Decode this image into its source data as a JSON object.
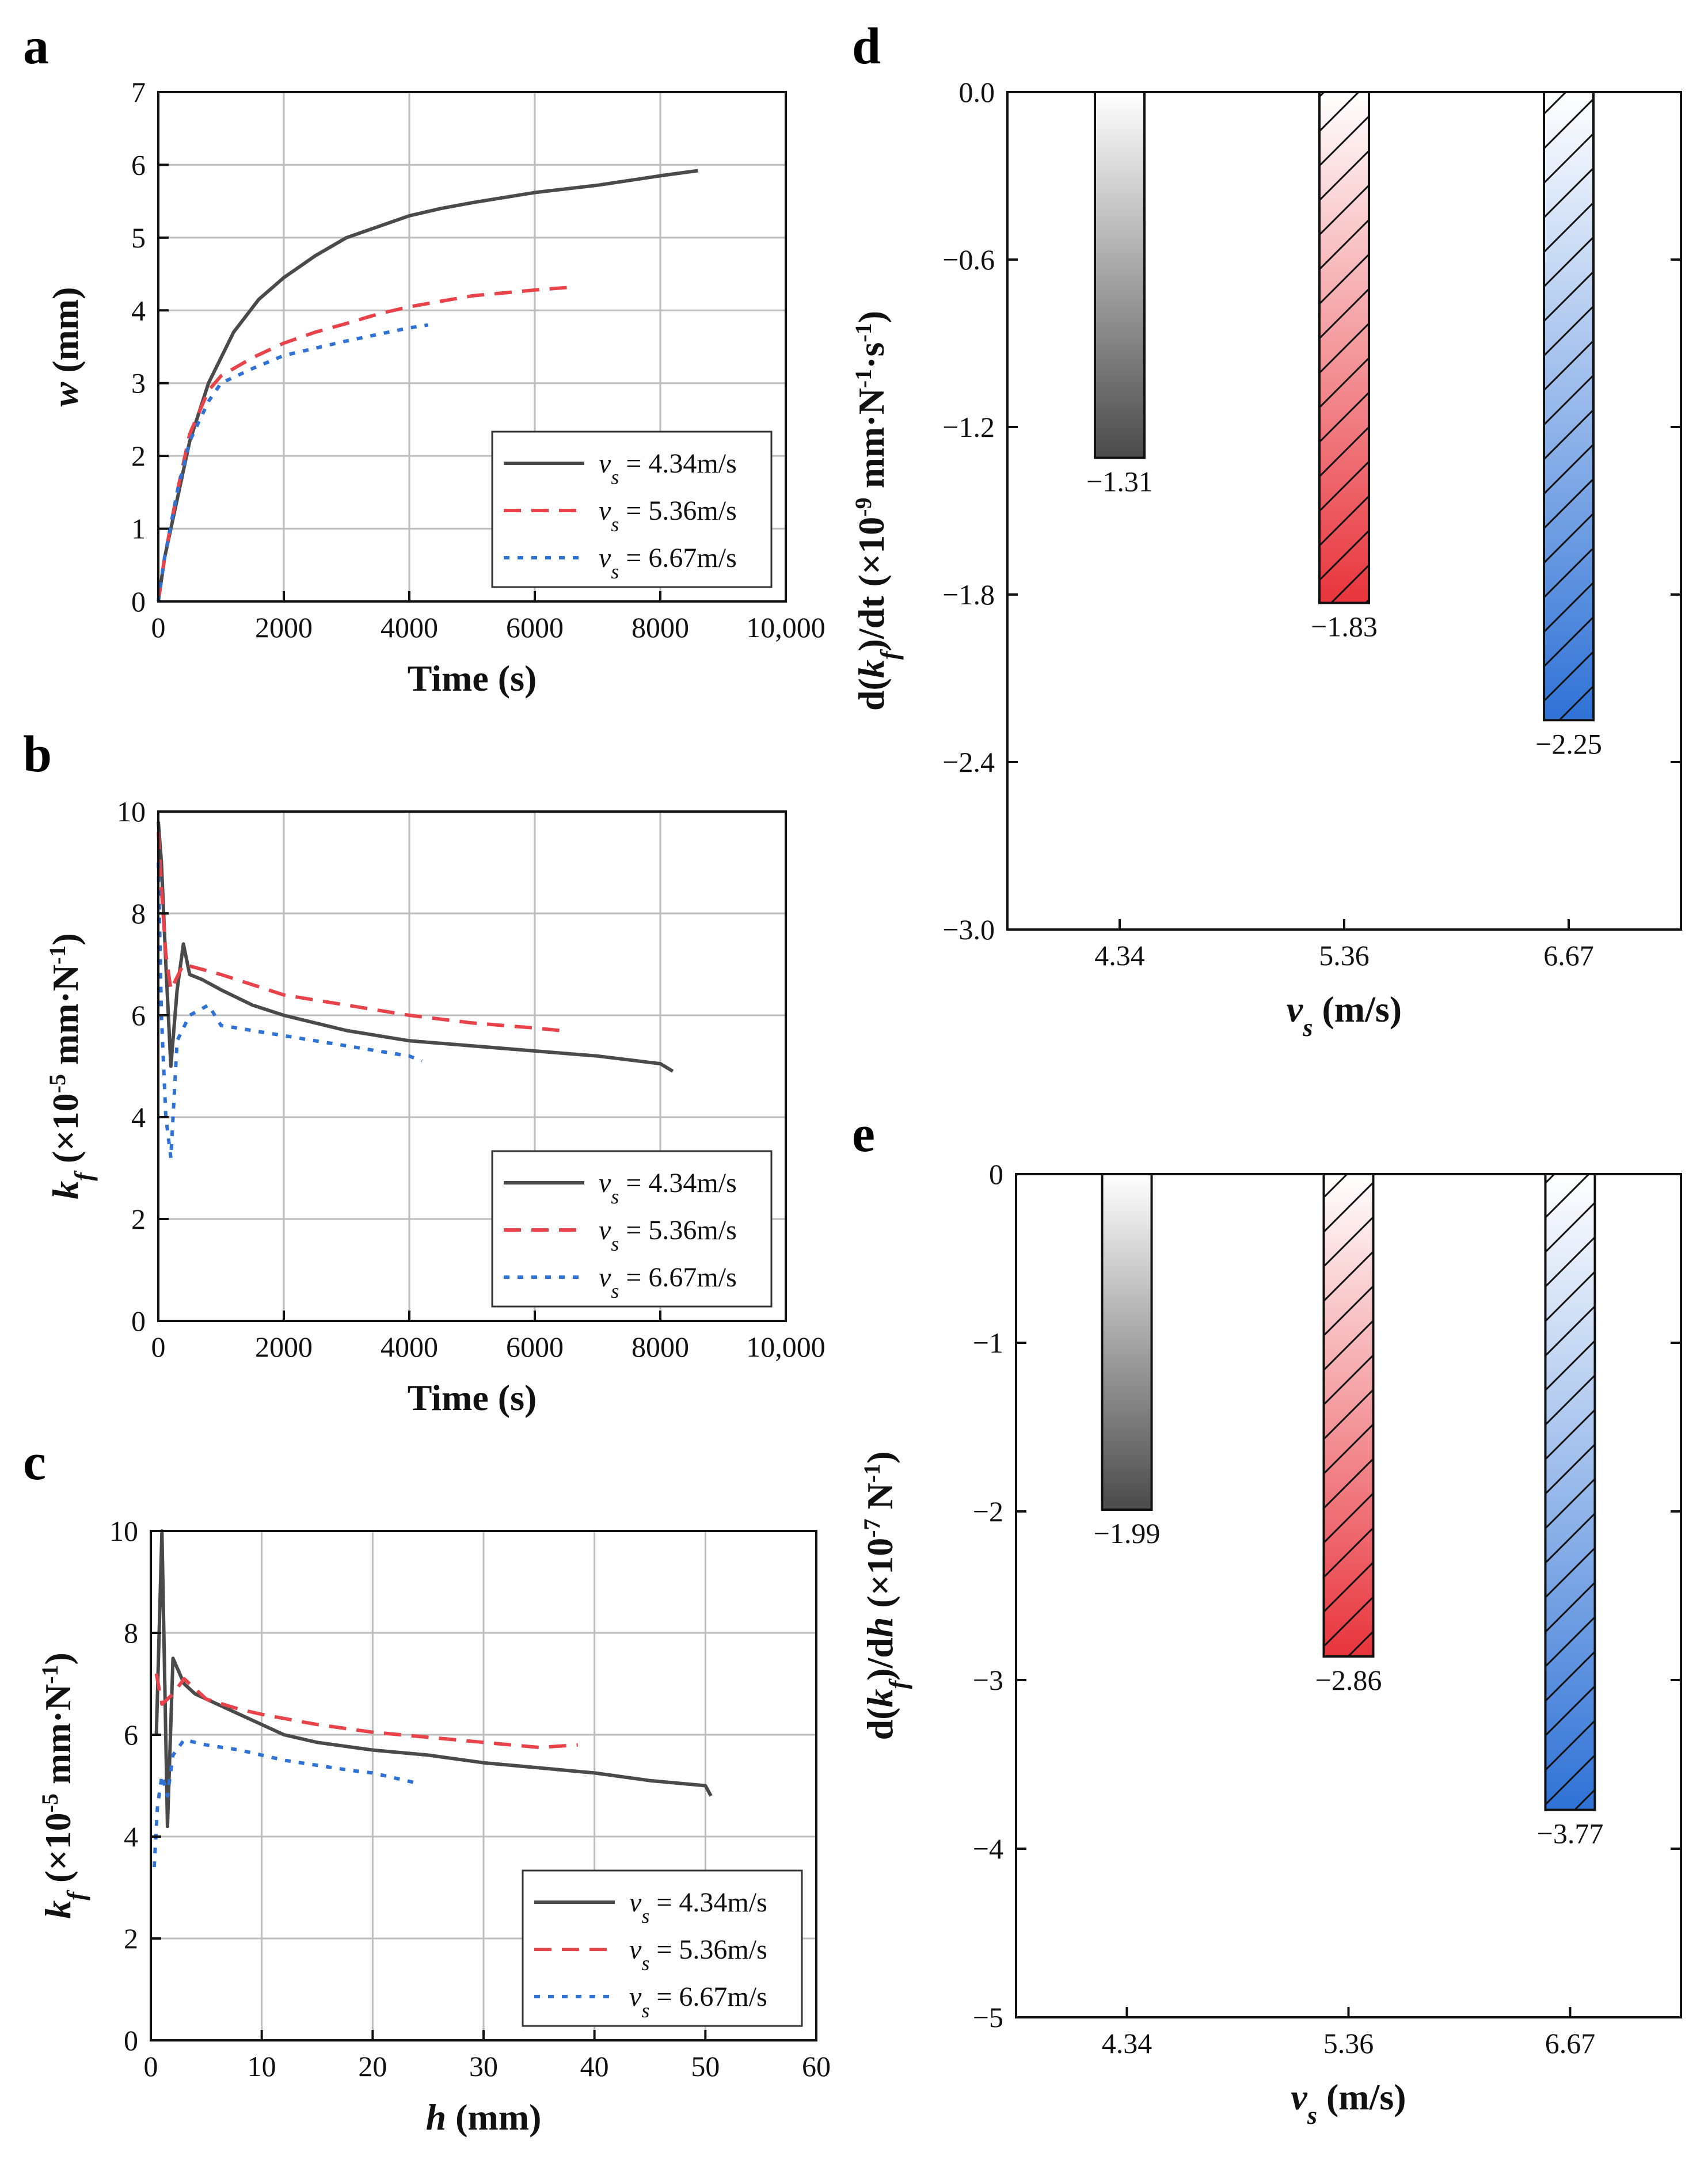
{
  "panel_letters": [
    "a",
    "b",
    "c",
    "d",
    "e"
  ],
  "colors": {
    "s1": "#4a4a4a",
    "s2": "#e8434a",
    "s3": "#2f72d6",
    "grid": "#bdbdbd",
    "axis": "#111111"
  },
  "legend": {
    "v_symbol": "v",
    "v_sub": "s",
    "entries": [
      "= 4.34m/s",
      "= 5.36m/s",
      "= 6.67m/s"
    ]
  },
  "chart_data": [
    {
      "id": "a",
      "type": "line",
      "xlabel": "Time (s)",
      "ylabel_main": "w",
      "ylabel_unit": " (mm)",
      "xlim": [
        0,
        10000
      ],
      "ylim": [
        0,
        7
      ],
      "xticks": [
        0,
        2000,
        4000,
        6000,
        8000,
        10000
      ],
      "xtick_labels": [
        "0",
        "2000",
        "4000",
        "6000",
        "8000",
        "10,000"
      ],
      "yticks": [
        0,
        1,
        2,
        3,
        4,
        5,
        6,
        7
      ],
      "ytick_labels": [
        "0",
        "1",
        "2",
        "3",
        "4",
        "5",
        "6",
        "7"
      ],
      "series": [
        {
          "name": "4.34m/s",
          "x": [
            0,
            100,
            300,
            500,
            800,
            1200,
            1600,
            2000,
            2500,
            3000,
            3500,
            4000,
            4500,
            5000,
            6000,
            7000,
            8000,
            8600
          ],
          "y": [
            0,
            0.6,
            1.4,
            2.2,
            3.0,
            3.7,
            4.15,
            4.45,
            4.75,
            5.0,
            5.15,
            5.3,
            5.4,
            5.48,
            5.62,
            5.72,
            5.85,
            5.92
          ]
        },
        {
          "name": "5.36m/s",
          "x": [
            0,
            100,
            300,
            500,
            800,
            1000,
            1500,
            2000,
            2500,
            3000,
            3500,
            4000,
            5000,
            6000,
            6600
          ],
          "y": [
            0,
            0.6,
            1.5,
            2.3,
            2.9,
            3.1,
            3.35,
            3.55,
            3.7,
            3.82,
            3.95,
            4.05,
            4.2,
            4.28,
            4.32
          ]
        },
        {
          "name": "6.67m/s",
          "x": [
            0,
            100,
            300,
            500,
            800,
            1000,
            1500,
            2000,
            2500,
            3000,
            3500,
            4000,
            4300
          ],
          "y": [
            0,
            0.6,
            1.5,
            2.2,
            2.75,
            3.0,
            3.2,
            3.38,
            3.48,
            3.58,
            3.67,
            3.76,
            3.8
          ]
        }
      ]
    },
    {
      "id": "b",
      "type": "line",
      "xlabel": "Time (s)",
      "ylabel_main": "k",
      "ylabel_sub": "f",
      "ylabel_unit": " (×10",
      "ylabel_exp": "-5",
      "ylabel_unit2": " mm·N",
      "ylabel_exp2": "-1",
      "ylabel_close": ")",
      "xlim": [
        0,
        10000
      ],
      "ylim": [
        0,
        10
      ],
      "xticks": [
        0,
        2000,
        4000,
        6000,
        8000,
        10000
      ],
      "xtick_labels": [
        "0",
        "2000",
        "4000",
        "6000",
        "8000",
        "10,000"
      ],
      "yticks": [
        0,
        2,
        4,
        6,
        8,
        10
      ],
      "ytick_labels": [
        "0",
        "2",
        "4",
        "6",
        "8",
        "10"
      ],
      "series": [
        {
          "name": "4.34m/s",
          "x": [
            0,
            50,
            120,
            200,
            300,
            400,
            500,
            700,
            1000,
            1500,
            2000,
            2500,
            3000,
            3500,
            4000,
            5000,
            6000,
            7000,
            8000,
            8200
          ],
          "y": [
            9.8,
            9.0,
            7.0,
            5.0,
            6.5,
            7.4,
            6.8,
            6.7,
            6.5,
            6.2,
            6.0,
            5.85,
            5.7,
            5.6,
            5.5,
            5.4,
            5.3,
            5.2,
            5.05,
            4.9
          ]
        },
        {
          "name": "5.36m/s",
          "x": [
            0,
            50,
            120,
            200,
            400,
            700,
            1000,
            1500,
            2000,
            2500,
            3000,
            3500,
            4000,
            5000,
            6000,
            6400
          ],
          "y": [
            9.6,
            8.5,
            7.2,
            6.5,
            7.0,
            6.9,
            6.8,
            6.6,
            6.4,
            6.3,
            6.2,
            6.1,
            6.0,
            5.85,
            5.75,
            5.7
          ]
        },
        {
          "name": "6.67m/s",
          "x": [
            0,
            50,
            120,
            200,
            300,
            500,
            800,
            1000,
            1500,
            2000,
            2500,
            3000,
            3500,
            4000,
            4200
          ],
          "y": [
            9.0,
            6.0,
            4.0,
            3.2,
            5.5,
            6.0,
            6.2,
            5.8,
            5.7,
            5.6,
            5.5,
            5.4,
            5.3,
            5.2,
            5.1
          ]
        }
      ]
    },
    {
      "id": "c",
      "type": "line",
      "xlabel_main": "h",
      "xlabel_unit": " (mm)",
      "ylabel_main": "k",
      "ylabel_sub": "f",
      "ylabel_unit": " (×10",
      "ylabel_exp": "-5",
      "ylabel_unit2": " mm·N",
      "ylabel_exp2": "-1",
      "ylabel_close": ")",
      "xlim": [
        0,
        60
      ],
      "ylim": [
        0,
        10
      ],
      "xticks": [
        0,
        10,
        20,
        30,
        40,
        50,
        60
      ],
      "xtick_labels": [
        "0",
        "10",
        "20",
        "30",
        "40",
        "50",
        "60"
      ],
      "yticks": [
        0,
        2,
        4,
        6,
        8,
        10
      ],
      "ytick_labels": [
        "0",
        "2",
        "4",
        "6",
        "8",
        "10"
      ],
      "series": [
        {
          "name": "4.34m/s",
          "x": [
            0.5,
            1,
            1.5,
            2,
            3,
            4,
            6,
            8,
            10,
            12,
            15,
            20,
            25,
            30,
            35,
            40,
            45,
            50,
            50.5
          ],
          "y": [
            6.0,
            10.0,
            4.2,
            7.5,
            7.0,
            6.8,
            6.6,
            6.4,
            6.2,
            6.0,
            5.85,
            5.7,
            5.6,
            5.45,
            5.35,
            5.25,
            5.1,
            5.0,
            4.8
          ]
        },
        {
          "name": "5.36m/s",
          "x": [
            0.5,
            1,
            2,
            3,
            5,
            8,
            10,
            15,
            20,
            25,
            30,
            35,
            38.5
          ],
          "y": [
            7.2,
            6.6,
            6.8,
            7.1,
            6.7,
            6.5,
            6.4,
            6.2,
            6.05,
            5.95,
            5.85,
            5.75,
            5.8
          ]
        },
        {
          "name": "6.67m/s",
          "x": [
            0.3,
            0.6,
            1,
            1.5,
            2,
            3,
            5,
            8,
            10,
            12,
            15,
            18,
            20,
            22,
            24
          ],
          "y": [
            3.4,
            4.6,
            5.2,
            4.8,
            5.6,
            5.9,
            5.8,
            5.7,
            5.6,
            5.5,
            5.4,
            5.3,
            5.25,
            5.15,
            5.05
          ]
        }
      ]
    },
    {
      "id": "d",
      "type": "bar",
      "xlabel_main": "v",
      "xlabel_sub": "s",
      "xlabel_unit": " (m/s)",
      "ylabel_pre": "d(",
      "ylabel_main": "k",
      "ylabel_sub": "f",
      "ylabel_mid": ")/dt (×10",
      "ylabel_exp": "-9",
      "ylabel_unit": " mm·N",
      "ylabel_exp2": "-1",
      "ylabel_unit2": "·s",
      "ylabel_exp3": "-1",
      "ylabel_close": ")",
      "categories": [
        "4.34",
        "5.36",
        "6.67"
      ],
      "values": [
        -1.31,
        -1.83,
        -2.25
      ],
      "value_labels": [
        "−1.31",
        "−1.83",
        "−2.25"
      ],
      "ylim": [
        -3.0,
        0.0
      ],
      "yticks": [
        0.0,
        -0.6,
        -1.2,
        -1.8,
        -2.4,
        -3.0
      ],
      "ytick_labels": [
        "0.0",
        "−0.6",
        "−1.2",
        "−1.8",
        "−2.4",
        "−3.0"
      ]
    },
    {
      "id": "e",
      "type": "bar",
      "xlabel_main": "v",
      "xlabel_sub": "s",
      "xlabel_unit": " (m/s)",
      "ylabel_pre": "d(",
      "ylabel_main": "k",
      "ylabel_sub": "f",
      "ylabel_mid": ")/d",
      "ylabel_h": "h",
      "ylabel_unit": " (×10",
      "ylabel_exp": "-7",
      "ylabel_unit2": " N",
      "ylabel_exp2": "-1",
      "ylabel_close": ")",
      "categories": [
        "4.34",
        "5.36",
        "6.67"
      ],
      "values": [
        -1.99,
        -2.86,
        -3.77
      ],
      "value_labels": [
        "−1.99",
        "−2.86",
        "−3.77"
      ],
      "ylim": [
        -5,
        0
      ],
      "yticks": [
        0,
        -1,
        -2,
        -3,
        -4,
        -5
      ],
      "ytick_labels": [
        "0",
        "−1",
        "−2",
        "−3",
        "−4",
        "−5"
      ]
    }
  ]
}
